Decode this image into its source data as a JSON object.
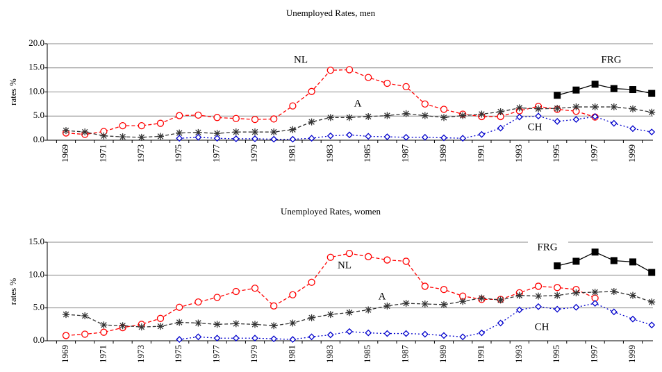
{
  "chart_data": [
    {
      "type": "line",
      "title": "Unemployed  Rates, men",
      "y_label": "rates  %",
      "categories": [
        "1969",
        null,
        "1971",
        null,
        "1973",
        null,
        "1975",
        null,
        "1977",
        null,
        "1979",
        null,
        "1981",
        null,
        "1983",
        null,
        "1985",
        null,
        "1987",
        null,
        "1989",
        null,
        "1991",
        null,
        "1993",
        null,
        "1995",
        null,
        "1997",
        null,
        "1999",
        null
      ],
      "ylim": [
        0,
        20
      ],
      "yticks": [
        {
          "value": 0,
          "label": "0.0"
        },
        {
          "value": 5,
          "label": "5.0"
        },
        {
          "value": 10,
          "label": "10.0"
        },
        {
          "value": 15,
          "label": "15.0"
        },
        {
          "value": 20,
          "label": "20.0"
        }
      ],
      "grid": true,
      "series": [
        {
          "name": "NL",
          "color": "#ff0000",
          "marker": "circle",
          "line_style": "dashed",
          "values": [
            1.5,
            1.2,
            1.8,
            3.0,
            3.0,
            3.5,
            5.1,
            5.2,
            4.7,
            4.5,
            4.3,
            4.4,
            7.1,
            10.1,
            14.5,
            14.6,
            13.0,
            11.8,
            11.1,
            7.5,
            6.4,
            5.4,
            4.9,
            4.9,
            6.1,
            7.0,
            6.4,
            6.0,
            4.8,
            null,
            null,
            null
          ]
        },
        {
          "name": "A",
          "color": "#333333",
          "marker": "asterisk",
          "line_style": "dashed",
          "values": [
            2.0,
            1.7,
            0.9,
            0.7,
            0.6,
            0.8,
            1.5,
            1.6,
            1.4,
            1.7,
            1.7,
            1.7,
            2.2,
            3.8,
            4.7,
            4.7,
            4.9,
            5.1,
            5.5,
            5.1,
            4.7,
            5.1,
            5.4,
            5.9,
            6.7,
            6.5,
            6.6,
            6.9,
            6.9,
            6.9,
            6.5,
            5.8
          ]
        },
        {
          "name": "CH",
          "color": "#0000cc",
          "marker": "diamond",
          "line_style": "dotted",
          "values": [
            null,
            null,
            null,
            null,
            null,
            null,
            0.4,
            0.6,
            0.4,
            0.3,
            0.3,
            0.2,
            0.2,
            0.4,
            0.9,
            1.1,
            0.8,
            0.7,
            0.6,
            0.6,
            0.5,
            0.4,
            1.2,
            2.5,
            4.8,
            5.0,
            3.9,
            4.3,
            4.9,
            3.5,
            2.4,
            1.7
          ]
        },
        {
          "name": "FRG",
          "color": "#000000",
          "marker": "square",
          "line_style": "solid",
          "values": [
            null,
            null,
            null,
            null,
            null,
            null,
            null,
            null,
            null,
            null,
            null,
            null,
            null,
            null,
            null,
            null,
            null,
            null,
            null,
            null,
            null,
            null,
            null,
            null,
            null,
            null,
            9.3,
            10.4,
            11.6,
            10.7,
            10.5,
            9.7
          ]
        }
      ]
    },
    {
      "type": "line",
      "title": "Unemployed  Rates, women",
      "y_label": "rates %",
      "categories": [
        "1969",
        null,
        "1971",
        null,
        "1973",
        null,
        "1975",
        null,
        "1977",
        null,
        "1979",
        null,
        "1981",
        null,
        "1983",
        null,
        "1985",
        null,
        "1987",
        null,
        "1989",
        null,
        "1991",
        null,
        "1993",
        null,
        "1995",
        null,
        "1997",
        null,
        "1999",
        null
      ],
      "ylim": [
        0,
        15
      ],
      "yticks": [
        {
          "value": 0,
          "label": "0.0"
        },
        {
          "value": 5,
          "label": "5.0"
        },
        {
          "value": 10,
          "label": "10.0"
        },
        {
          "value": 15,
          "label": "15.0"
        }
      ],
      "grid": true,
      "series": [
        {
          "name": "NL",
          "color": "#ff0000",
          "marker": "circle",
          "line_style": "dashed",
          "values": [
            0.8,
            1.0,
            1.3,
            2.0,
            2.5,
            3.4,
            5.1,
            5.9,
            6.6,
            7.5,
            8.0,
            5.3,
            7.0,
            8.9,
            12.7,
            13.3,
            12.8,
            12.3,
            12.1,
            8.3,
            7.8,
            6.8,
            6.3,
            6.3,
            7.3,
            8.3,
            8.1,
            7.8,
            6.5,
            null,
            null,
            null
          ]
        },
        {
          "name": "A",
          "color": "#333333",
          "marker": "asterisk",
          "line_style": "dashed",
          "values": [
            4.0,
            3.8,
            2.4,
            2.3,
            2.1,
            2.2,
            2.8,
            2.7,
            2.5,
            2.6,
            2.5,
            2.3,
            2.7,
            3.5,
            4.0,
            4.3,
            4.7,
            5.3,
            5.7,
            5.6,
            5.5,
            6.0,
            6.5,
            6.2,
            6.9,
            6.8,
            6.9,
            7.3,
            7.4,
            7.5,
            6.9,
            5.9
          ]
        },
        {
          "name": "CH",
          "color": "#0000cc",
          "marker": "diamond",
          "line_style": "dotted",
          "values": [
            null,
            null,
            null,
            null,
            null,
            null,
            0.2,
            0.6,
            0.4,
            0.4,
            0.4,
            0.3,
            0.2,
            0.6,
            0.9,
            1.4,
            1.2,
            1.1,
            1.1,
            1.0,
            0.8,
            0.6,
            1.2,
            2.7,
            4.7,
            5.2,
            4.8,
            5.1,
            5.7,
            4.4,
            3.3,
            2.4
          ]
        },
        {
          "name": "FRG",
          "color": "#000000",
          "marker": "square",
          "line_style": "solid",
          "values": [
            null,
            null,
            null,
            null,
            null,
            null,
            null,
            null,
            null,
            null,
            null,
            null,
            null,
            null,
            null,
            null,
            null,
            null,
            null,
            null,
            null,
            null,
            null,
            null,
            null,
            null,
            11.4,
            12.1,
            13.5,
            12.2,
            12.0,
            10.4
          ]
        }
      ]
    }
  ]
}
